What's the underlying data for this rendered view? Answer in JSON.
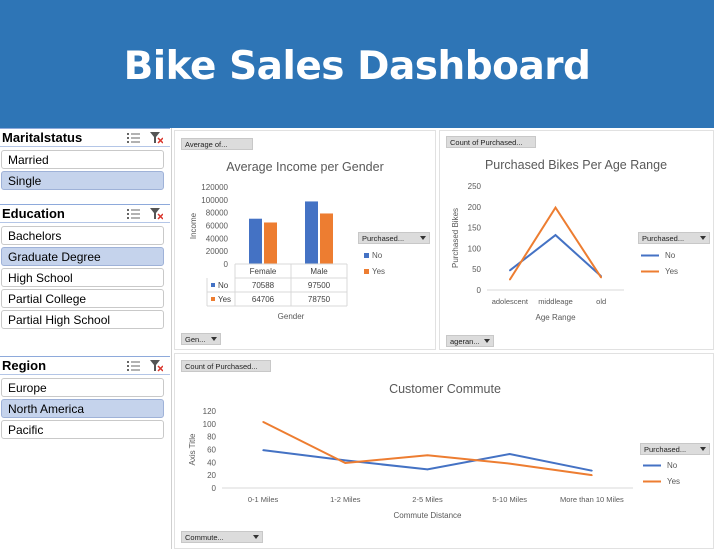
{
  "header": {
    "title": "Bike Sales Dashboard"
  },
  "slicers": {
    "marital": {
      "title": "Maritalstatus",
      "items": [
        {
          "label": "Married",
          "selected": false
        },
        {
          "label": "Single",
          "selected": true
        }
      ]
    },
    "education": {
      "title": "Education",
      "items": [
        {
          "label": "Bachelors",
          "selected": false
        },
        {
          "label": "Graduate Degree",
          "selected": true
        },
        {
          "label": "High School",
          "selected": false
        },
        {
          "label": "Partial College",
          "selected": false
        },
        {
          "label": "Partial High School",
          "selected": false
        }
      ]
    },
    "region": {
      "title": "Region",
      "items": [
        {
          "label": "Europe",
          "selected": false
        },
        {
          "label": "North America",
          "selected": true
        },
        {
          "label": "Pacific",
          "selected": false
        }
      ]
    }
  },
  "colors": {
    "banner": "#2e75b6",
    "no": "#4472c4",
    "yes": "#ed7d31",
    "selected_item": "#c5d3ec"
  },
  "field_buttons": {
    "income_value": "Average of...",
    "income_legend": "Purchased...",
    "income_axis": "Gen...",
    "age_value": "Count of Purchased...",
    "age_legend": "Purchased...",
    "age_axis": "ageran...",
    "commute_value": "Count of Purchased...",
    "commute_legend": "Purchased...",
    "commute_axis": "Commute..."
  },
  "chart_data": [
    {
      "type": "bar",
      "title": "Average Income per Gender",
      "xlabel": "Gender",
      "ylabel": "Income",
      "categories": [
        "Female",
        "Male"
      ],
      "series": [
        {
          "name": "No",
          "values": [
            70588,
            97500
          ]
        },
        {
          "name": "Yes",
          "values": [
            64706,
            78750
          ]
        }
      ],
      "ylim": [
        0,
        120000
      ],
      "yticks": [
        "120000",
        "100000",
        "80000",
        "60000",
        "40000",
        "20000",
        "0"
      ],
      "data_table": [
        {
          "name": "No",
          "values": [
            "70588",
            "97500"
          ]
        },
        {
          "name": "Yes",
          "values": [
            "64706",
            "78750"
          ]
        }
      ],
      "legend": "right",
      "grid": false
    },
    {
      "type": "line",
      "title": "Purchased Bikes Per Age Range",
      "xlabel": "Age Range",
      "ylabel": "Purchased Bikes",
      "categories": [
        "adolescent",
        "middleage",
        "old"
      ],
      "series": [
        {
          "name": "No",
          "values": [
            47,
            132,
            33
          ]
        },
        {
          "name": "Yes",
          "values": [
            25,
            198,
            30
          ]
        }
      ],
      "ylim": [
        0,
        250
      ],
      "yticks": [
        "250",
        "200",
        "150",
        "100",
        "50",
        "0"
      ],
      "legend": "right",
      "grid": false
    },
    {
      "type": "line",
      "title": "Customer Commute",
      "xlabel": "Commute Distance",
      "ylabel": "Axis Title",
      "categories": [
        "0-1 Miles",
        "1-2 Miles",
        "2-5 Miles",
        "5-10 Miles",
        "More than 10 Miles"
      ],
      "series": [
        {
          "name": "No",
          "values": [
            59,
            43,
            29,
            53,
            27
          ]
        },
        {
          "name": "Yes",
          "values": [
            103,
            39,
            51,
            38,
            20
          ]
        }
      ],
      "ylim": [
        0,
        120
      ],
      "yticks": [
        "120",
        "100",
        "80",
        "60",
        "40",
        "20",
        "0"
      ],
      "legend": "right",
      "grid": false
    }
  ]
}
